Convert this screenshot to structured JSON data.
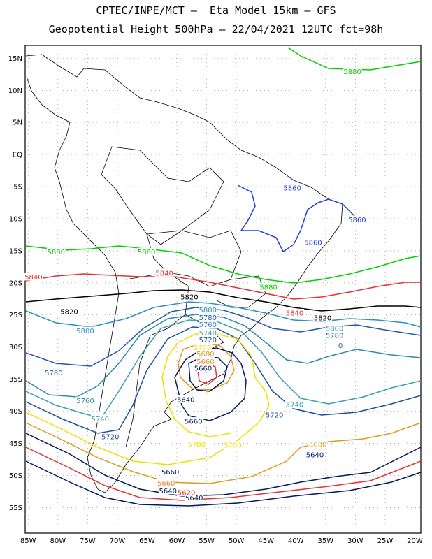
{
  "title": {
    "line1": "CPTEC/INPE/MCT –  Eta Model 15km – GFS",
    "line2": "Geopotential Height 500hPa – 22/04/2021 12UTC fct=98h"
  },
  "axes": {
    "lat_labels": [
      "15N",
      "10N",
      "5N",
      "EQ",
      "5S",
      "10S",
      "15S",
      "20S",
      "25S",
      "30S",
      "35S",
      "40S",
      "45S",
      "50S",
      "55S"
    ],
    "lon_labels": [
      "85W",
      "80W",
      "75W",
      "70W",
      "65W",
      "60W",
      "55W",
      "50W",
      "45W",
      "40W",
      "35W",
      "30W",
      "25W",
      "20W"
    ],
    "lat_range": [
      17,
      -59
    ],
    "lon_range": [
      -85.5,
      -19
    ],
    "grid": "dotted"
  },
  "contour_levels": [
    {
      "value": 5880,
      "color": "#00d000"
    },
    {
      "value": 5860,
      "color": "#2040e0"
    },
    {
      "value": 5840,
      "color": "#e83030"
    },
    {
      "value": 5820,
      "color": "#000000"
    },
    {
      "value": 5800,
      "color": "#2a8fc8"
    },
    {
      "value": 5780,
      "color": "#2258b0"
    },
    {
      "value": 5760,
      "color": "#2f88b0"
    },
    {
      "value": 5740,
      "color": "#3aa0b0"
    },
    {
      "value": 5720,
      "color": "#1f4f99"
    },
    {
      "value": 5700,
      "color": "#f0e000"
    },
    {
      "value": 5680,
      "color": "#e09a20"
    },
    {
      "value": 5660,
      "color": "#f08a30"
    },
    {
      "value": 5640,
      "color": "#001a60"
    }
  ],
  "labels": [
    {
      "text": "5880",
      "color": "#00d000",
      "lon": -30.5,
      "lat": 12.8
    },
    {
      "text": "5880",
      "color": "#00d000",
      "lon": -80.3,
      "lat": -15.3
    },
    {
      "text": "5880",
      "color": "#00d000",
      "lon": -65.1,
      "lat": -15.3
    },
    {
      "text": "5880",
      "color": "#00d000",
      "lon": -44.6,
      "lat": -20.8
    },
    {
      "text": "5860",
      "color": "#2040e0",
      "lon": -40.6,
      "lat": -5.3
    },
    {
      "text": "5860",
      "color": "#2040e0",
      "lon": -37.1,
      "lat": -13.8
    },
    {
      "text": "5860",
      "color": "#2040e0",
      "lon": -29.7,
      "lat": -10.3
    },
    {
      "text": "5840",
      "color": "#e83030",
      "lon": -84.1,
      "lat": -19.2
    },
    {
      "text": "5840",
      "color": "#e83030",
      "lon": -62.1,
      "lat": -18.6
    },
    {
      "text": "5840",
      "color": "#e83030",
      "lon": -40.2,
      "lat": -24.8
    },
    {
      "text": "5820",
      "color": "#000000",
      "lon": -78.1,
      "lat": -24.6
    },
    {
      "text": "5820",
      "color": "#000000",
      "lon": -57.9,
      "lat": -22.3
    },
    {
      "text": "5820",
      "color": "#000000",
      "lon": -35.5,
      "lat": -25.6
    },
    {
      "text": "5800",
      "color": "#2a8fc8",
      "lon": -54.8,
      "lat": -24.3
    },
    {
      "text": "5800",
      "color": "#2a8fc8",
      "lon": -75.4,
      "lat": -27.6
    },
    {
      "text": "5800",
      "color": "#2a8fc8",
      "lon": -33.5,
      "lat": -27.2
    },
    {
      "text": "5780",
      "color": "#2258b0",
      "lon": -54.8,
      "lat": -25.5
    },
    {
      "text": "5780",
      "color": "#2258b0",
      "lon": -80.7,
      "lat": -34.1
    },
    {
      "text": "5780",
      "color": "#2258b0",
      "lon": -33.5,
      "lat": -28.3
    },
    {
      "text": "5760",
      "color": "#2f88b0",
      "lon": -54.8,
      "lat": -26.6
    },
    {
      "text": "5760",
      "color": "#2f88b0",
      "lon": -75.4,
      "lat": -38.5
    },
    {
      "text": "5740",
      "color": "#3aa0b0",
      "lon": -54.8,
      "lat": -27.9
    },
    {
      "text": "5740",
      "color": "#3aa0b0",
      "lon": -72.9,
      "lat": -41.3
    },
    {
      "text": "5740",
      "color": "#3aa0b0",
      "lon": -40.2,
      "lat": -39.1
    },
    {
      "text": "5720",
      "color": "#1f4f99",
      "lon": -54.8,
      "lat": -29.0
    },
    {
      "text": "5720",
      "color": "#1f4f99",
      "lon": -71.2,
      "lat": -44.1
    },
    {
      "text": "5720",
      "color": "#1f4f99",
      "lon": -43.6,
      "lat": -40.7
    },
    {
      "text": "5700",
      "color": "#f0e000",
      "lon": -55.7,
      "lat": -30.2
    },
    {
      "text": "5700",
      "color": "#f0e000",
      "lon": -56.7,
      "lat": -45.3
    },
    {
      "text": "5700",
      "color": "#f0e000",
      "lon": -50.6,
      "lat": -45.4
    },
    {
      "text": "5680",
      "color": "#e09a20",
      "lon": -55.2,
      "lat": -31.2
    },
    {
      "text": "5680",
      "color": "#e09a20",
      "lon": -36.3,
      "lat": -45.3
    },
    {
      "text": "5660",
      "color": "#f08a30",
      "lon": -55.2,
      "lat": -32.4
    },
    {
      "text": "5660",
      "color": "#f08a30",
      "lon": -61.8,
      "lat": -51.3
    },
    {
      "text": "5660",
      "color": "#001a60",
      "lon": -55.6,
      "lat": -33.4
    },
    {
      "text": "5660",
      "color": "#001a60",
      "lon": -57.2,
      "lat": -41.7
    },
    {
      "text": "5660",
      "color": "#001a60",
      "lon": -61.1,
      "lat": -49.6
    },
    {
      "text": "5640",
      "color": "#001a60",
      "lon": -58.5,
      "lat": -38.3
    },
    {
      "text": "5640",
      "color": "#001a60",
      "lon": -36.8,
      "lat": -46.9
    },
    {
      "text": "5640",
      "color": "#001a60",
      "lon": -61.5,
      "lat": -52.5
    },
    {
      "text": "5640",
      "color": "#001a60",
      "lon": -57.1,
      "lat": -53.6
    },
    {
      "text": "5620",
      "color": "#e83030",
      "lon": -58.4,
      "lat": -52.8
    },
    {
      "text": "0",
      "color": "#2258b0",
      "lon": -32.5,
      "lat": -29.9
    }
  ]
}
